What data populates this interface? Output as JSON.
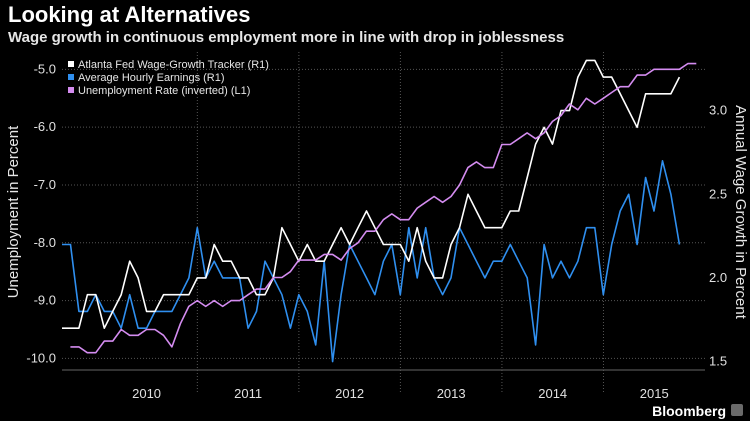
{
  "header": {
    "title": "Looking at Alternatives",
    "subtitle": "Wage growth in continuous employment more in line with drop in joblessness"
  },
  "brand": {
    "name": "Bloomberg",
    "icon": "bloomberg-terminal-icon"
  },
  "chart_data": {
    "type": "line",
    "title": "Looking at Alternatives",
    "subtitle": "Wage growth in continuous employment more in line with drop in joblessness",
    "ylabel_left": "Unemployment in Percent",
    "ylabel_right": "Annual Wage Growth in Percent",
    "ylim_left": [
      -10.2,
      -4.7
    ],
    "ylim_right": [
      1.45,
      3.35
    ],
    "left_ticks": [
      "-5.0",
      "-6.0",
      "-7.0",
      "-8.0",
      "-9.0",
      "-10.0"
    ],
    "left_tick_values": [
      -5,
      -6,
      -7,
      -8,
      -9,
      -10
    ],
    "right_ticks": [
      "3.0",
      "2.5",
      "2.0",
      "1.5"
    ],
    "right_tick_values": [
      3.0,
      2.5,
      2.0,
      1.5
    ],
    "x_start": 2009.667,
    "x_end": 2016.0,
    "year_labels": [
      "2010",
      "2011",
      "2012",
      "2013",
      "2014",
      "2015"
    ],
    "year_label_positions": [
      2010.5,
      2011.5,
      2012.5,
      2013.5,
      2014.5,
      2015.5
    ],
    "year_boundaries": [
      2011,
      2012,
      2013,
      2014,
      2015
    ],
    "grid": true,
    "legend_position": "top-left",
    "series": [
      {
        "name": "Atlanta Fed Wage-Growth Tracker (R1)",
        "axis": "right",
        "color": "#ffffff",
        "x_start": 2009.667,
        "x_step": 0.0833,
        "values": [
          1.7,
          1.7,
          1.7,
          1.9,
          1.9,
          1.7,
          1.8,
          1.9,
          2.1,
          2.0,
          1.8,
          1.8,
          1.9,
          1.9,
          1.9,
          1.9,
          2.0,
          2.0,
          2.2,
          2.1,
          2.1,
          2.0,
          2.0,
          1.9,
          1.9,
          2.0,
          2.3,
          2.2,
          2.1,
          2.2,
          2.1,
          2.1,
          2.2,
          2.3,
          2.2,
          2.3,
          2.4,
          2.3,
          2.2,
          2.2,
          2.2,
          2.1,
          2.3,
          2.1,
          2.0,
          2.0,
          2.2,
          2.3,
          2.5,
          2.4,
          2.3,
          2.3,
          2.3,
          2.4,
          2.4,
          2.6,
          2.8,
          2.9,
          2.8,
          3.0,
          3.0,
          3.2,
          3.3,
          3.3,
          3.2,
          3.2,
          3.1,
          3.0,
          2.9,
          3.1,
          3.1,
          3.1,
          3.1,
          3.2
        ]
      },
      {
        "name": "Average Hourly Earnings (R1)",
        "axis": "right",
        "color": "#2f8fef",
        "x_start": 2009.667,
        "x_step": 0.0833,
        "values": [
          2.2,
          2.2,
          1.8,
          1.8,
          1.9,
          1.8,
          1.8,
          1.7,
          1.9,
          1.7,
          1.7,
          1.8,
          1.8,
          1.8,
          1.9,
          2.0,
          2.3,
          2.0,
          2.1,
          2.0,
          2.0,
          2.0,
          1.7,
          1.8,
          2.1,
          2.0,
          1.9,
          1.7,
          1.9,
          1.8,
          1.6,
          2.1,
          1.5,
          1.9,
          2.2,
          2.1,
          2.0,
          1.9,
          2.1,
          2.2,
          1.9,
          2.3,
          2.0,
          2.3,
          2.0,
          1.9,
          2.0,
          2.3,
          2.2,
          2.1,
          2.0,
          2.1,
          2.1,
          2.2,
          2.1,
          2.0,
          1.6,
          2.2,
          2.0,
          2.1,
          2.0,
          2.1,
          2.3,
          2.3,
          1.9,
          2.2,
          2.4,
          2.5,
          2.2,
          2.6,
          2.4,
          2.7,
          2.5,
          2.2
        ]
      },
      {
        "name": "Unemployment Rate (inverted) (L1)",
        "axis": "left",
        "color": "#d48cf0",
        "x_start": 2009.75,
        "x_step": 0.0833,
        "values": [
          -9.8,
          -9.8,
          -9.9,
          -9.9,
          -9.7,
          -9.7,
          -9.5,
          -9.6,
          -9.6,
          -9.5,
          -9.5,
          -9.6,
          -9.8,
          -9.4,
          -9.1,
          -9.0,
          -9.1,
          -9.0,
          -9.1,
          -9.0,
          -9.0,
          -8.9,
          -8.8,
          -8.8,
          -8.6,
          -8.6,
          -8.5,
          -8.3,
          -8.3,
          -8.3,
          -8.2,
          -8.2,
          -8.3,
          -8.1,
          -8.0,
          -7.8,
          -7.8,
          -7.6,
          -7.5,
          -7.6,
          -7.6,
          -7.4,
          -7.3,
          -7.2,
          -7.3,
          -7.2,
          -7.0,
          -6.7,
          -6.6,
          -6.7,
          -6.7,
          -6.3,
          -6.3,
          -6.2,
          -6.1,
          -6.2,
          -6.1,
          -5.9,
          -5.8,
          -5.6,
          -5.7,
          -5.5,
          -5.6,
          -5.5,
          -5.4,
          -5.3,
          -5.3,
          -5.1,
          -5.1,
          -5.0,
          -5.0,
          -5.0,
          -5.0,
          -4.9,
          -4.9
        ]
      }
    ]
  }
}
